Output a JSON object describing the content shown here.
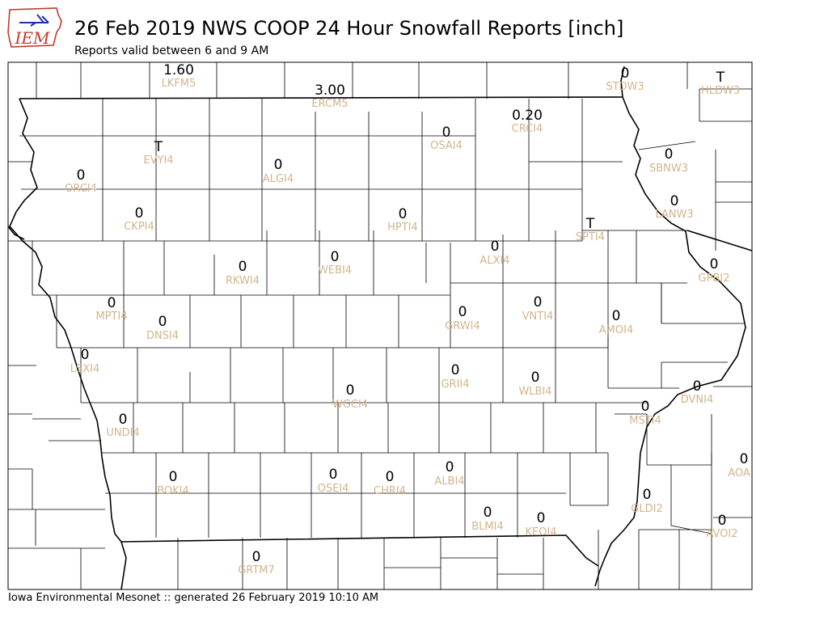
{
  "title": "26 Feb 2019 NWS COOP 24 Hour Snowfall Reports [inch]",
  "subtitle": "Reports valid between 6 and 9 AM",
  "footer": "Iowa Environmental Mesonet :: generated 26 February 2019 10:10 AM",
  "logo_text": "IEM",
  "colors": {
    "value": "#000000",
    "station": "#d2b48c",
    "logo_red": "#c0392b",
    "logo_blue": "#1f2fa8"
  },
  "stations": [
    {
      "id": "LKFM5",
      "value": "1.60"
    },
    {
      "id": "STDW3",
      "value": "0"
    },
    {
      "id": "HLDW3",
      "value": "T"
    },
    {
      "id": "ERCM5",
      "value": "3.00"
    },
    {
      "id": "CRCI4",
      "value": "0.20"
    },
    {
      "id": "OSAI4",
      "value": "0"
    },
    {
      "id": "EVYI4",
      "value": "T"
    },
    {
      "id": "SBNW3",
      "value": "0"
    },
    {
      "id": "ORCI4",
      "value": "0"
    },
    {
      "id": "ALGI4",
      "value": "0"
    },
    {
      "id": "LANW3",
      "value": "0"
    },
    {
      "id": "CKPI4",
      "value": "0"
    },
    {
      "id": "HPTI4",
      "value": "0"
    },
    {
      "id": "SPTI4",
      "value": "T"
    },
    {
      "id": "ALXI4",
      "value": "0"
    },
    {
      "id": "WEBI4",
      "value": "0"
    },
    {
      "id": "RKWI4",
      "value": "0"
    },
    {
      "id": "GPBI2",
      "value": "0"
    },
    {
      "id": "MPTI4",
      "value": "0"
    },
    {
      "id": "DNSI4",
      "value": "0"
    },
    {
      "id": "GRWI4",
      "value": "0"
    },
    {
      "id": "VNTI4",
      "value": "0"
    },
    {
      "id": "AMOI4",
      "value": "0"
    },
    {
      "id": "LSXI4",
      "value": "0"
    },
    {
      "id": "GRII4",
      "value": "0"
    },
    {
      "id": "WLBI4",
      "value": "0"
    },
    {
      "id": "WGCI4",
      "value": "0"
    },
    {
      "id": "DVNI4",
      "value": "0"
    },
    {
      "id": "UNDI4",
      "value": "0"
    },
    {
      "id": "MSTI4",
      "value": "0"
    },
    {
      "id": "AOA",
      "value": "0"
    },
    {
      "id": "ALBI4",
      "value": "0"
    },
    {
      "id": "BOKI4",
      "value": "0"
    },
    {
      "id": "OSEI4",
      "value": "0"
    },
    {
      "id": "CHRI4",
      "value": "0"
    },
    {
      "id": "GLDI2",
      "value": "0"
    },
    {
      "id": "BLMI4",
      "value": "0"
    },
    {
      "id": "KEOI4",
      "value": "0"
    },
    {
      "id": "AVOI2",
      "value": "0"
    },
    {
      "id": "GRTM7",
      "value": "0"
    }
  ]
}
